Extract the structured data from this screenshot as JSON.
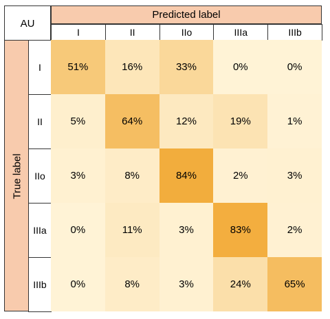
{
  "corner_label": "AU",
  "chart_data": {
    "type": "heatmap",
    "xlabel": "Predicted label",
    "ylabel": "True label",
    "x_categories": [
      "I",
      "II",
      "IIo",
      "IIIa",
      "IIIb"
    ],
    "y_categories": [
      "I",
      "II",
      "IIo",
      "IIIa",
      "IIIb"
    ],
    "values": [
      [
        51,
        16,
        33,
        0,
        0
      ],
      [
        5,
        64,
        12,
        19,
        1
      ],
      [
        3,
        8,
        84,
        2,
        3
      ],
      [
        0,
        11,
        3,
        83,
        2
      ],
      [
        0,
        8,
        3,
        24,
        65
      ]
    ],
    "value_labels": [
      [
        "51%",
        "16%",
        "33%",
        "0%",
        "0%"
      ],
      [
        "5%",
        "64%",
        "12%",
        "19%",
        "1%"
      ],
      [
        "3%",
        "8%",
        "84%",
        "2%",
        "3%"
      ],
      [
        "0%",
        "11%",
        "3%",
        "83%",
        "2%"
      ],
      [
        "0%",
        "8%",
        "3%",
        "24%",
        "65%"
      ]
    ],
    "color_low": "#fff3d6",
    "color_high": "#f0a020",
    "header_color": "#f8cbad"
  }
}
